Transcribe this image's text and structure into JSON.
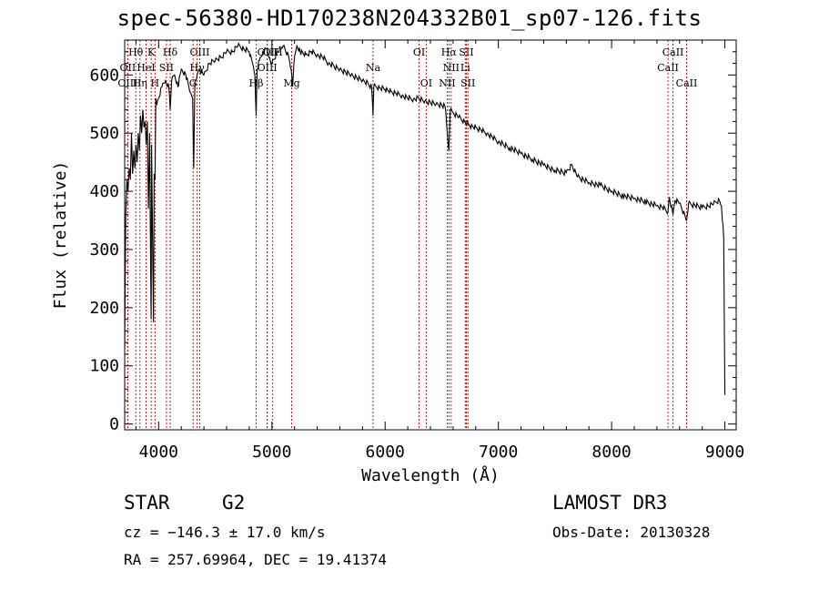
{
  "chart_data": {
    "type": "line",
    "title": "spec-56380-HD170238N204332B01_sp07-126.fits",
    "xlabel": "Wavelength (Å)",
    "ylabel": "Flux (relative)",
    "xlim": [
      3700,
      9100
    ],
    "ylim": [
      -10,
      660
    ],
    "xticks": [
      4000,
      5000,
      6000,
      7000,
      8000,
      9000
    ],
    "yticks": [
      0,
      100,
      200,
      300,
      400,
      500,
      600
    ],
    "series": [
      {
        "name": "spectrum",
        "x": [
          3700,
          3705,
          3710,
          3720,
          3730,
          3740,
          3750,
          3760,
          3770,
          3780,
          3790,
          3800,
          3810,
          3820,
          3830,
          3840,
          3850,
          3860,
          3870,
          3880,
          3890,
          3900,
          3910,
          3920,
          3930,
          3934,
          3938,
          3945,
          3955,
          3960,
          3968,
          3975,
          3985,
          4000,
          4030,
          4060,
          4090,
          4102,
          4115,
          4140,
          4170,
          4200,
          4240,
          4280,
          4300,
          4310,
          4320,
          4340,
          4360,
          4400,
          4450,
          4500,
          4550,
          4600,
          4650,
          4700,
          4750,
          4800,
          4830,
          4850,
          4861,
          4870,
          4890,
          4920,
          4950,
          4980,
          5000,
          5050,
          5100,
          5150,
          5170,
          5183,
          5195,
          5220,
          5250,
          5300,
          5350,
          5400,
          5450,
          5500,
          5550,
          5600,
          5650,
          5700,
          5750,
          5800,
          5850,
          5880,
          5893,
          5900,
          5950,
          6000,
          6050,
          6100,
          6150,
          6200,
          6250,
          6300,
          6350,
          6400,
          6450,
          6500,
          6530,
          6563,
          6575,
          6600,
          6650,
          6700,
          6750,
          6800,
          6850,
          6900,
          6950,
          7000,
          7100,
          7200,
          7300,
          7400,
          7500,
          7600,
          7650,
          7700,
          7800,
          7900,
          8000,
          8100,
          8200,
          8300,
          8400,
          8450,
          8498,
          8510,
          8542,
          8560,
          8600,
          8662,
          8680,
          8700,
          8800,
          8850,
          8900,
          8950,
          8970,
          8990,
          9000
        ],
        "values": [
          130,
          250,
          360,
          420,
          400,
          440,
          420,
          500,
          430,
          470,
          440,
          480,
          450,
          500,
          470,
          530,
          500,
          540,
          510,
          520,
          480,
          520,
          370,
          500,
          260,
          180,
          480,
          340,
          175,
          430,
          420,
          560,
          550,
          560,
          580,
          590,
          580,
          540,
          590,
          600,
          580,
          610,
          600,
          570,
          560,
          440,
          590,
          600,
          610,
          600,
          620,
          625,
          630,
          640,
          640,
          650,
          645,
          640,
          620,
          600,
          530,
          610,
          625,
          640,
          645,
          630,
          620,
          640,
          650,
          630,
          610,
          580,
          620,
          650,
          640,
          635,
          640,
          635,
          630,
          620,
          615,
          610,
          605,
          600,
          595,
          590,
          585,
          580,
          530,
          580,
          578,
          575,
          572,
          568,
          565,
          560,
          558,
          560,
          555,
          553,
          550,
          548,
          545,
          470,
          540,
          535,
          527,
          520,
          512,
          510,
          505,
          500,
          492,
          485,
          475,
          465,
          455,
          445,
          436,
          432,
          445,
          425,
          415,
          410,
          400,
          392,
          388,
          382,
          375,
          372,
          365,
          390,
          360,
          385,
          380,
          350,
          380,
          378,
          372,
          375,
          378,
          385,
          375,
          320,
          50
        ]
      }
    ],
    "lines": [
      {
        "name": "Hθ",
        "lambda": 3798,
        "row": 0
      },
      {
        "name": "K",
        "lambda": 3934,
        "row": 0
      },
      {
        "name": "Hδ",
        "lambda": 4102,
        "row": 0
      },
      {
        "name": "OIII",
        "lambda": 4363,
        "row": 0
      },
      {
        "name": "OIII",
        "lambda": 4959,
        "row": 0
      },
      {
        "name": "OIII",
        "lambda": 5007,
        "row": 0
      },
      {
        "name": "OI",
        "lambda": 6300,
        "row": 0
      },
      {
        "name": "Hα",
        "lambda": 6563,
        "row": 0
      },
      {
        "name": "SII",
        "lambda": 6717,
        "row": 0
      },
      {
        "name": "CaII",
        "lambda": 8542,
        "row": 0
      },
      {
        "name": "OII",
        "lambda": 3727,
        "row": 1
      },
      {
        "name": "HeI",
        "lambda": 3889,
        "row": 1
      },
      {
        "name": "SII",
        "lambda": 4069,
        "row": 1
      },
      {
        "name": "Hγ",
        "lambda": 4340,
        "row": 1
      },
      {
        "name": "OIII",
        "lambda": 4959,
        "row": 1
      },
      {
        "name": "Na",
        "lambda": 5893,
        "row": 1
      },
      {
        "name": "NII",
        "lambda": 6583,
        "row": 1
      },
      {
        "name": "Li",
        "lambda": 6708,
        "row": 1
      },
      {
        "name": "CaII",
        "lambda": 8498,
        "row": 1
      },
      {
        "name": "OIII",
        "lambda": 3727,
        "row": 2
      },
      {
        "name": "Hη",
        "lambda": 3835,
        "row": 2
      },
      {
        "name": "H",
        "lambda": 3968,
        "row": 2
      },
      {
        "name": "G",
        "lambda": 4304,
        "row": 2
      },
      {
        "name": "Hβ",
        "lambda": 4861,
        "row": 2
      },
      {
        "name": "Mg",
        "lambda": 5175,
        "row": 2
      },
      {
        "name": "OI",
        "lambda": 6363,
        "row": 2
      },
      {
        "name": "NII",
        "lambda": 6548,
        "row": 2
      },
      {
        "name": "SII",
        "lambda": 6731,
        "row": 2
      },
      {
        "name": "CaII",
        "lambda": 8662,
        "row": 2
      }
    ]
  },
  "info": {
    "object_class": "STAR",
    "subclass": "G2",
    "survey": "LAMOST DR3",
    "cz": "cz = −146.3 ± 17.0 km/s",
    "obs_date": "Obs-Date: 20130328",
    "coords": "RA = 257.69964, DEC =  19.41374"
  },
  "colors": {
    "spectrum": "#000000",
    "line_marker": "#c00000",
    "axis": "#000000"
  }
}
